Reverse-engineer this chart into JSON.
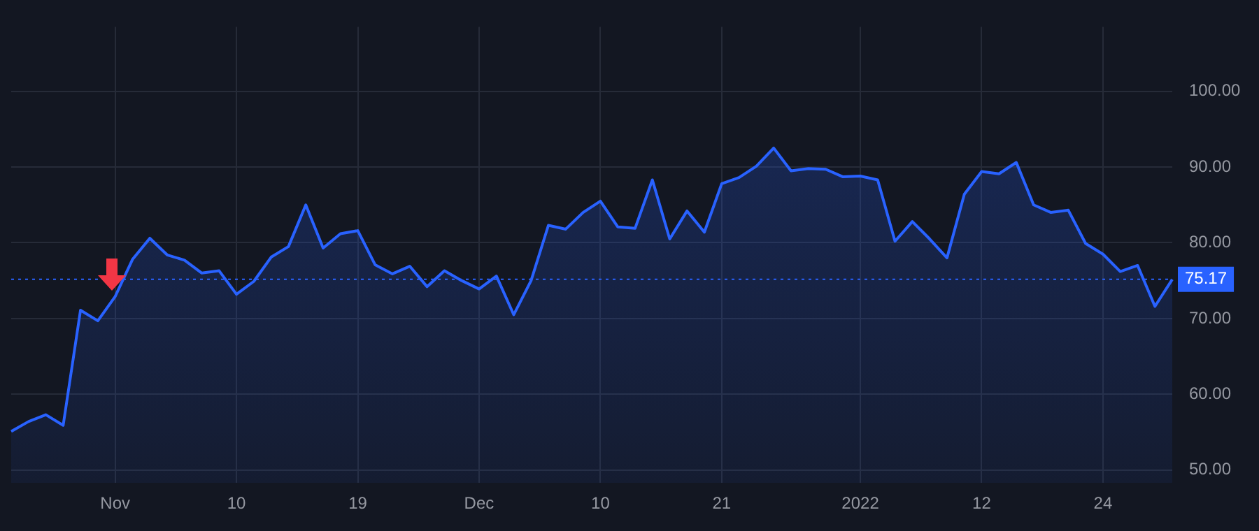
{
  "chart_data": {
    "type": "area",
    "categories": [
      null,
      null,
      null,
      null,
      null,
      null,
      "Nov",
      null,
      null,
      null,
      null,
      null,
      null,
      "10",
      null,
      null,
      null,
      null,
      null,
      null,
      "19",
      null,
      null,
      null,
      null,
      null,
      null,
      "Dec",
      null,
      null,
      null,
      null,
      null,
      null,
      "10",
      null,
      null,
      null,
      null,
      null,
      null,
      "21",
      null,
      null,
      null,
      null,
      null,
      null,
      null,
      "2022",
      null,
      null,
      null,
      null,
      null,
      null,
      "12",
      null,
      null,
      null,
      null,
      null,
      null,
      "24",
      null,
      null,
      null,
      null
    ],
    "series": [
      {
        "color": "#2962ff",
        "values": [
          55.1,
          56.4,
          57.3,
          55.9,
          71.1,
          69.7,
          72.9,
          77.8,
          80.6,
          78.4,
          77.7,
          76.0,
          76.3,
          73.2,
          74.9,
          78.1,
          79.5,
          85.0,
          79.3,
          81.2,
          81.6,
          77.1,
          75.9,
          76.9,
          74.2,
          76.3,
          75.0,
          73.9,
          75.6,
          70.5,
          75.0,
          82.3,
          81.8,
          84.0,
          85.5,
          82.1,
          81.9,
          88.3,
          80.5,
          84.2,
          81.4,
          87.8,
          88.6,
          90.1,
          92.5,
          89.5,
          89.8,
          89.7,
          88.7,
          88.8,
          88.3,
          80.2,
          82.8,
          80.5,
          78.0,
          86.4,
          89.4,
          89.1,
          90.6,
          85.0,
          84.0,
          84.3,
          79.9,
          78.5,
          76.2,
          77.0,
          71.6,
          75.17
        ]
      }
    ],
    "ylim": [
      48.3,
      108.5
    ],
    "yticks": [
      {
        "value": 50,
        "label": "50.00"
      },
      {
        "value": 60,
        "label": "60.00"
      },
      {
        "value": 70,
        "label": "70.00"
      },
      {
        "value": 80,
        "label": "80.00"
      },
      {
        "value": 90,
        "label": "90.00"
      },
      {
        "value": 100,
        "label": "100.00"
      }
    ],
    "ref_lines": [
      {
        "axis": "y",
        "value": 75.17,
        "label": "75.17",
        "color": "#2962ff",
        "line_style": "dotted"
      }
    ],
    "grid": true,
    "legend": false
  }
}
